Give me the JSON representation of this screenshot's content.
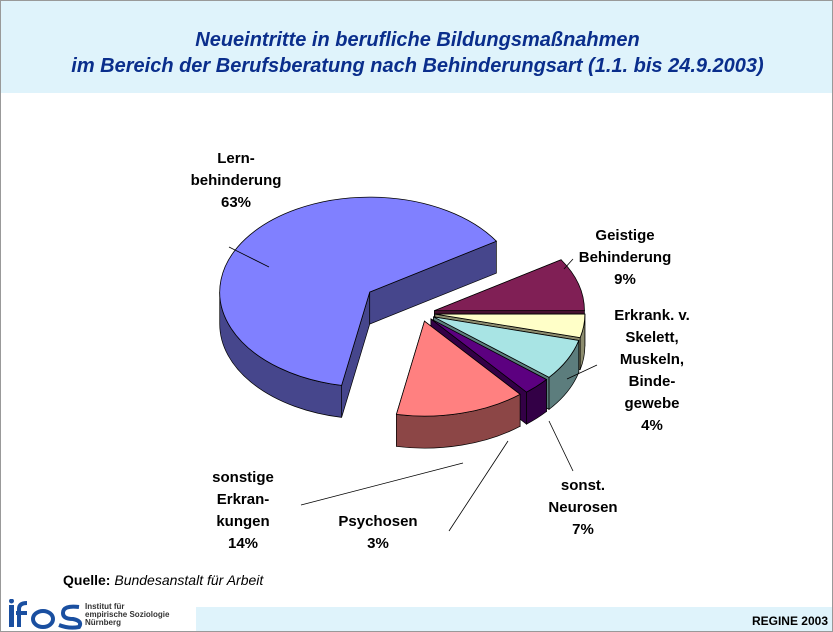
{
  "chart_data": {
    "type": "pie",
    "title": [
      "Neueintritte in berufliche Bildungsmaßnahmen",
      "im Bereich der Berufsberatung nach Behinderungsart (1.1. bis 24.9.2003)"
    ],
    "categories": [
      "Lern-\nbehinderung",
      "Geistige\nBehinderung",
      "Erkrank. v.\nSkelett,\nMuskeln,\nBinde-\ngewebe",
      "sonst.\nNeurosen",
      "Psychosen",
      "sonstige\nErkran-\nkungen"
    ],
    "values": [
      63,
      9,
      4,
      7,
      3,
      14
    ],
    "value_labels": [
      "63%",
      "9%",
      "4%",
      "7%",
      "3%",
      "14%"
    ],
    "colors": [
      "#8080ff",
      "#801f55",
      "#ffffc8",
      "#a8e4e4",
      "#5c0080",
      "#ff8080"
    ],
    "source_label": "Quelle:",
    "source": "Bundesanstalt für Arbeit"
  },
  "logo": {
    "lines": [
      "Institut für",
      "empirische Soziologie",
      "Nürnberg"
    ]
  },
  "footer": "REGINE 2003"
}
